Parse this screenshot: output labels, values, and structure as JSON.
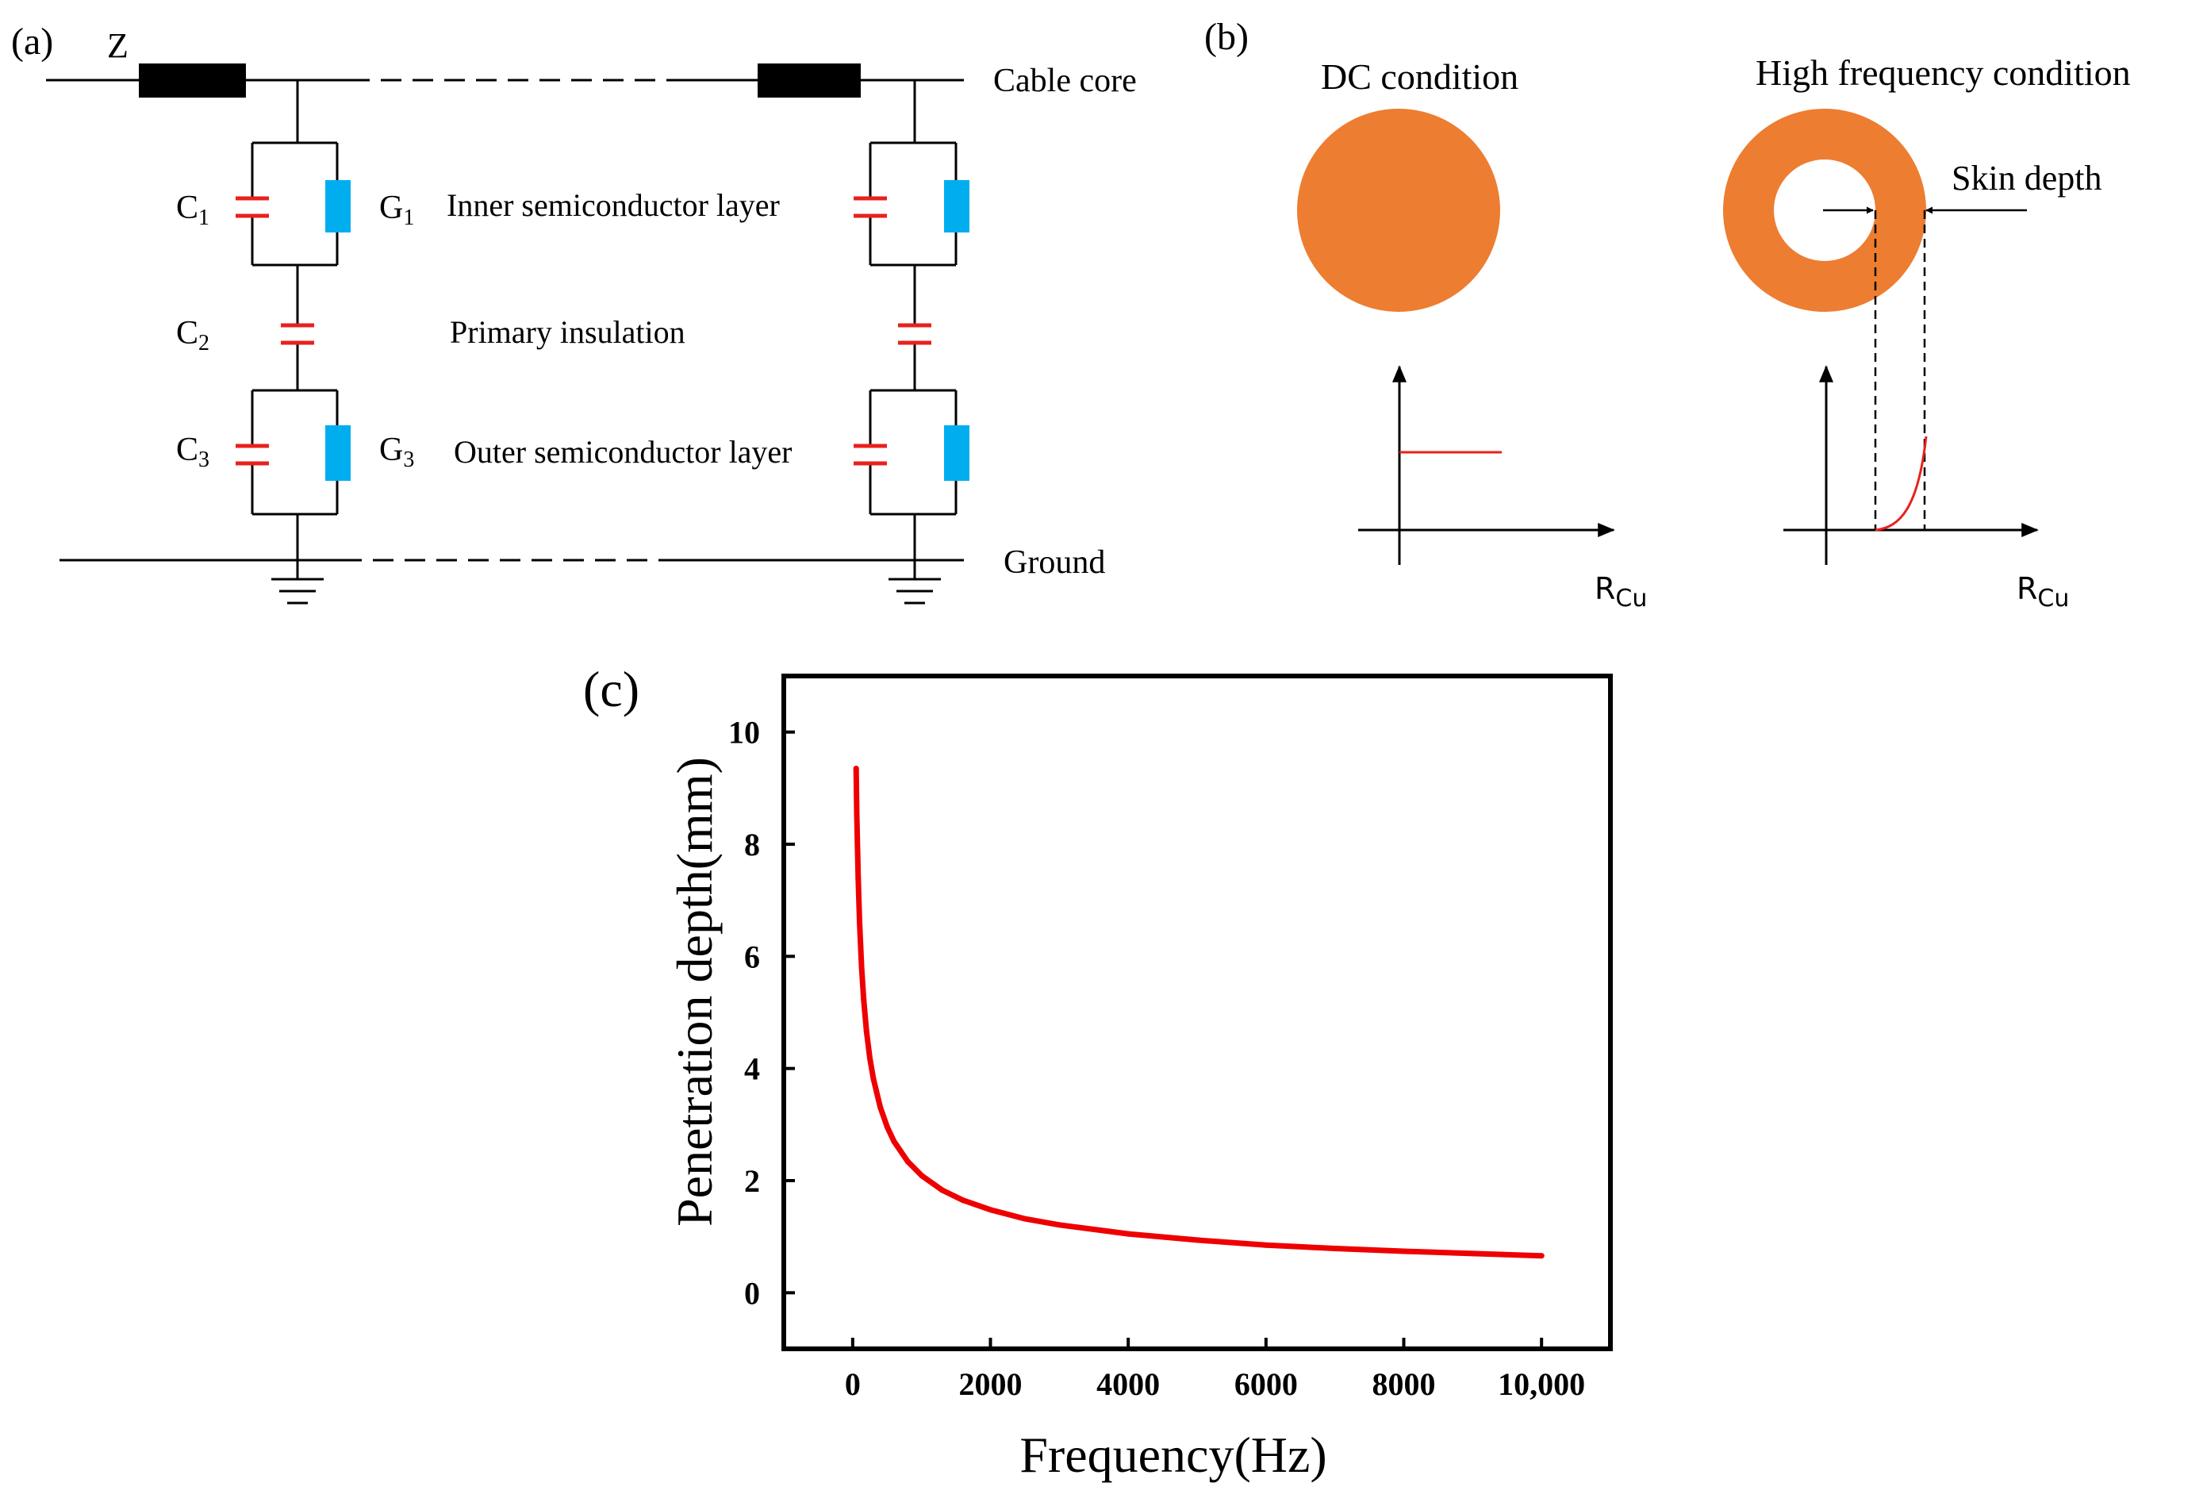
{
  "panel_a": {
    "label": "(a)",
    "impedance_label": "Z",
    "core_label": "Cable core",
    "ground_label": "Ground",
    "c1_label": "C",
    "c1_sub": "1",
    "g1_label": "G",
    "g1_sub": "1",
    "c2_label": "C",
    "c2_sub": "2",
    "c3_label": "C",
    "c3_sub": "3",
    "g3_label": "G",
    "g3_sub": "3",
    "inner_layer_label": "Inner semiconductor layer",
    "insulation_label": "Primary insulation",
    "outer_layer_label": "Outer semiconductor layer"
  },
  "panel_b": {
    "label": "(b)",
    "dc_title": "DC condition",
    "hf_title": "High frequency condition",
    "skin_depth_label": "Skin depth",
    "axis_label_main": "R",
    "axis_label_sub": "Cu"
  },
  "panel_c": {
    "label": "(c)"
  },
  "colors": {
    "conductor": "#ED7D31",
    "capacitor": "#E8211D",
    "resistor": "#00AEEF",
    "curve": "#EE0000",
    "line": "#000000"
  },
  "chart_data": {
    "type": "line",
    "title": "",
    "xlabel": "Frequency(Hz)",
    "ylabel": "Penetration depth(mm)",
    "xlim": [
      -1000,
      11000
    ],
    "ylim": [
      -1,
      11
    ],
    "xticks": [
      0,
      2000,
      4000,
      6000,
      8000,
      10000
    ],
    "xtick_labels": [
      "0",
      "2000",
      "4000",
      "6000",
      "8000",
      "10,000"
    ],
    "yticks": [
      0,
      2,
      4,
      6,
      8,
      10
    ],
    "ytick_labels": [
      "0",
      "2",
      "4",
      "6",
      "8",
      "10"
    ],
    "grid": false,
    "series": [
      {
        "name": "Penetration depth",
        "x": [
          50,
          60,
          80,
          100,
          130,
          160,
          200,
          250,
          300,
          400,
          500,
          600,
          800,
          1000,
          1300,
          1600,
          2000,
          2500,
          3000,
          4000,
          5000,
          6000,
          7000,
          8000,
          9000,
          10000
        ],
        "y": [
          9.35,
          8.53,
          7.39,
          6.61,
          5.8,
          5.23,
          4.67,
          4.18,
          3.82,
          3.31,
          2.96,
          2.7,
          2.34,
          2.09,
          1.83,
          1.65,
          1.48,
          1.32,
          1.21,
          1.05,
          0.94,
          0.85,
          0.79,
          0.74,
          0.7,
          0.66
        ]
      }
    ]
  }
}
